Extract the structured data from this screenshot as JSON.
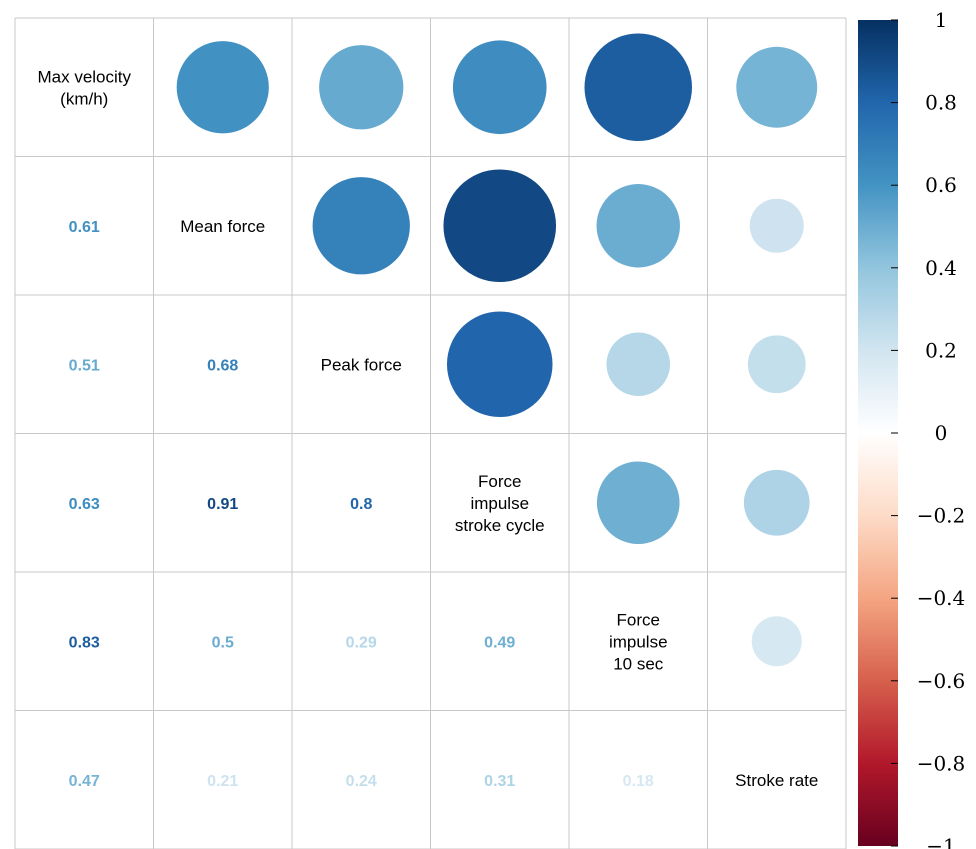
{
  "chart_data": {
    "type": "heatmap",
    "variables": [
      [
        "Max velocity",
        "(km/h)"
      ],
      [
        "Mean force"
      ],
      [
        "Peak force"
      ],
      [
        "Force",
        "impulse",
        "stroke cycle"
      ],
      [
        "Force",
        "impulse",
        "10 sec"
      ],
      [
        "Stroke rate"
      ]
    ],
    "matrix": [
      [
        1,
        0.61,
        0.51,
        0.63,
        0.83,
        0.47
      ],
      [
        0.61,
        1,
        0.68,
        0.91,
        0.5,
        0.21
      ],
      [
        0.51,
        0.68,
        1,
        0.8,
        0.29,
        0.24
      ],
      [
        0.63,
        0.91,
        0.8,
        1,
        0.49,
        0.31
      ],
      [
        0.83,
        0.5,
        0.29,
        0.49,
        1,
        0.18
      ],
      [
        0.47,
        0.21,
        0.24,
        0.31,
        0.18,
        1
      ]
    ],
    "lower_labels": [
      {
        "row": 1,
        "col": 0,
        "text": "0.61"
      },
      {
        "row": 2,
        "col": 0,
        "text": "0.51"
      },
      {
        "row": 2,
        "col": 1,
        "text": "0.68"
      },
      {
        "row": 3,
        "col": 0,
        "text": "0.63"
      },
      {
        "row": 3,
        "col": 1,
        "text": "0.91"
      },
      {
        "row": 3,
        "col": 2,
        "text": "0.8"
      },
      {
        "row": 4,
        "col": 0,
        "text": "0.83"
      },
      {
        "row": 4,
        "col": 1,
        "text": "0.5"
      },
      {
        "row": 4,
        "col": 2,
        "text": "0.29"
      },
      {
        "row": 4,
        "col": 3,
        "text": "0.49"
      },
      {
        "row": 5,
        "col": 0,
        "text": "0.47"
      },
      {
        "row": 5,
        "col": 1,
        "text": "0.21"
      },
      {
        "row": 5,
        "col": 2,
        "text": "0.24"
      },
      {
        "row": 5,
        "col": 3,
        "text": "0.31"
      },
      {
        "row": 5,
        "col": 4,
        "text": "0.18"
      }
    ],
    "upper": "circle",
    "lower": "number",
    "diagonal": "variable names",
    "color_scale": {
      "range": [
        -1,
        1
      ],
      "ticks": [
        "1",
        "0.8",
        "0.6",
        "0.4",
        "0.2",
        "0",
        "−0.2",
        "−0.4",
        "−0.6",
        "−0.8",
        "−1"
      ],
      "stops": [
        "#67001F",
        "#B2182B",
        "#D6604D",
        "#F4A582",
        "#FDDBC7",
        "#FFFFFF",
        "#D1E5F0",
        "#92C5DE",
        "#4393C3",
        "#2166AC",
        "#053061"
      ],
      "legend_position": "right"
    },
    "grid": true
  }
}
